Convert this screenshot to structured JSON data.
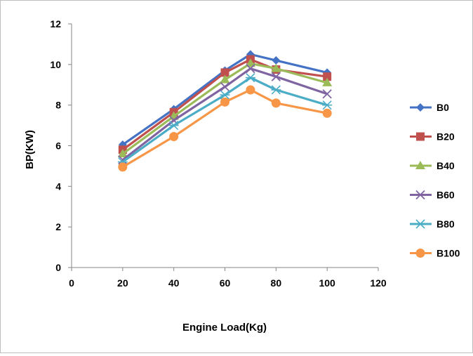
{
  "chart_data": {
    "type": "line",
    "title": "",
    "xlabel": "Engine Load(Kg)",
    "ylabel": "BP(KW)",
    "xlim": [
      0,
      120
    ],
    "ylim": [
      0,
      12
    ],
    "x_ticks": [
      0,
      20,
      40,
      60,
      80,
      100,
      120
    ],
    "y_ticks": [
      0,
      2,
      4,
      6,
      8,
      10,
      12
    ],
    "grid": false,
    "legend_position": "right",
    "x": [
      20,
      40,
      60,
      70,
      80,
      100
    ],
    "series": [
      {
        "name": "B0",
        "color": "#4472C4",
        "marker": "diamond",
        "values": [
          6.05,
          7.8,
          9.7,
          10.5,
          10.2,
          9.6
        ]
      },
      {
        "name": "B20",
        "color": "#C0504D",
        "marker": "square",
        "values": [
          5.8,
          7.65,
          9.6,
          10.25,
          9.75,
          9.4
        ]
      },
      {
        "name": "B40",
        "color": "#9BBB59",
        "marker": "triangle",
        "values": [
          5.6,
          7.45,
          9.25,
          10.05,
          9.8,
          9.1
        ]
      },
      {
        "name": "B60",
        "color": "#8064A2",
        "marker": "x",
        "values": [
          5.3,
          7.25,
          8.9,
          9.8,
          9.4,
          8.55
        ]
      },
      {
        "name": "B80",
        "color": "#4BACC6",
        "marker": "asterisk",
        "values": [
          5.2,
          7.0,
          8.5,
          9.35,
          8.75,
          8.0
        ]
      },
      {
        "name": "B100",
        "color": "#F79646",
        "marker": "circle",
        "values": [
          4.95,
          6.45,
          8.15,
          8.75,
          8.1,
          7.6
        ]
      }
    ]
  }
}
